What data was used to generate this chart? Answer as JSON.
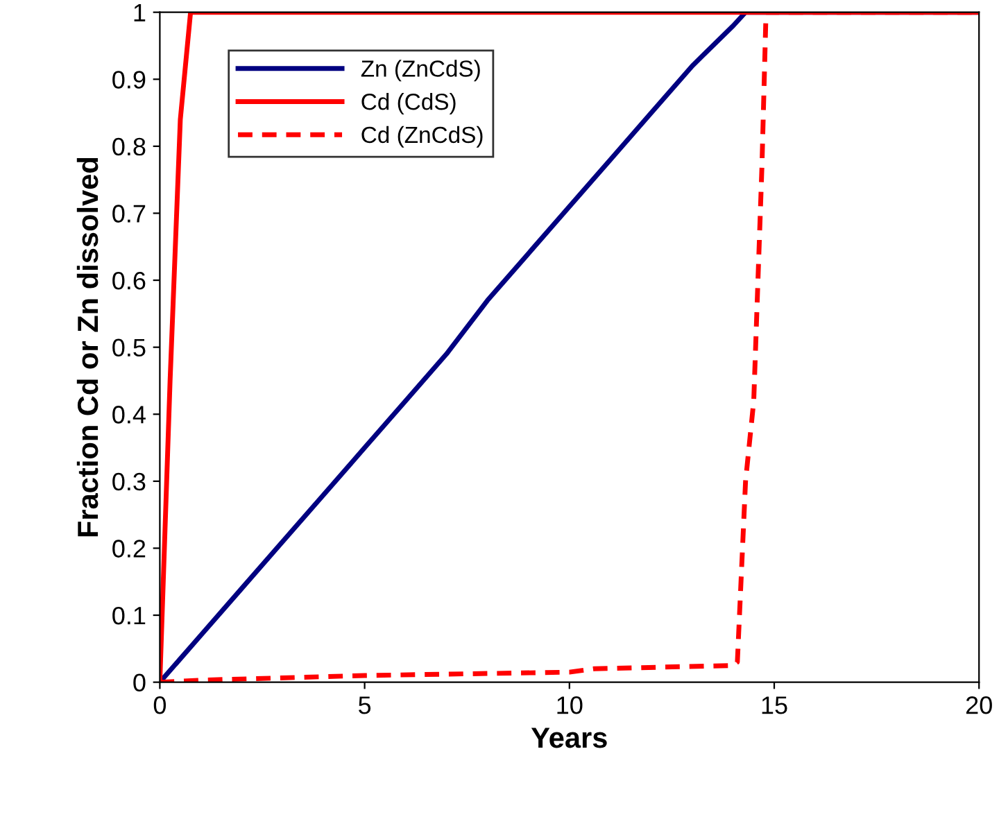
{
  "chart_data": {
    "type": "line",
    "xlabel": "Years",
    "ylabel": "Fraction Cd or Zn dissolved",
    "xlim": [
      0,
      20
    ],
    "xticks": [
      0,
      5,
      10,
      15,
      20
    ],
    "ylim": [
      0,
      1
    ],
    "yticks": [
      0,
      0.1,
      0.2,
      0.3,
      0.4,
      0.5,
      0.6,
      0.7,
      0.8,
      0.9,
      1
    ],
    "grid": false,
    "legend": "top left",
    "series": [
      {
        "name": "Zn (ZnCdS)",
        "color": "#000080",
        "line_style": "solid",
        "x": [
          0,
          1,
          2,
          3,
          4,
          5,
          6,
          7,
          8,
          9,
          10,
          11,
          12,
          13,
          14,
          14.3,
          20
        ],
        "values": [
          0,
          0.07,
          0.14,
          0.21,
          0.28,
          0.35,
          0.42,
          0.49,
          0.57,
          0.64,
          0.71,
          0.78,
          0.85,
          0.92,
          0.98,
          1,
          1
        ]
      },
      {
        "name": "Cd (CdS)",
        "color": "#ff0000",
        "line_style": "solid",
        "x": [
          0,
          0.25,
          0.5,
          0.75,
          20
        ],
        "values": [
          0,
          0.45,
          0.84,
          1,
          1
        ]
      },
      {
        "name": "Cd (ZnCdS)",
        "color": "#ff0000",
        "line_style": "dashed",
        "x": [
          0,
          1,
          5,
          10,
          10.6,
          14,
          14.1,
          14.3,
          14.5,
          14.7,
          14.8,
          20
        ],
        "values": [
          0,
          0.003,
          0.01,
          0.015,
          0.02,
          0.025,
          0.03,
          0.3,
          0.42,
          0.77,
          1,
          1
        ]
      }
    ]
  }
}
